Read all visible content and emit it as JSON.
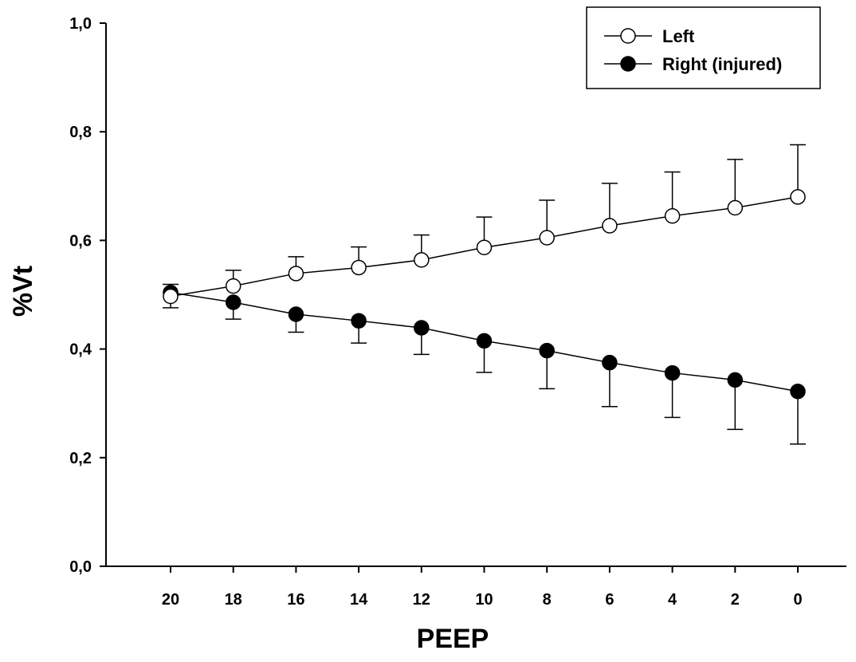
{
  "chart_data": {
    "type": "line",
    "title": "",
    "xlabel": "PEEP",
    "ylabel": "%Vt",
    "x": [
      20,
      18,
      16,
      14,
      12,
      10,
      8,
      6,
      4,
      2,
      0
    ],
    "x_tick_labels": [
      "20",
      "18",
      "16",
      "14",
      "12",
      "10",
      "8",
      "6",
      "4",
      "2",
      "0"
    ],
    "x_reversed": true,
    "ylim": [
      0,
      1
    ],
    "y_ticks": [
      0,
      0.2,
      0.4,
      0.6,
      0.8,
      1.0
    ],
    "y_tick_labels": [
      "0,0",
      "0,2",
      "0,4",
      "0,6",
      "0,8",
      "1,0"
    ],
    "grid": false,
    "legend_position": "top-right",
    "series": [
      {
        "name": "Left",
        "marker": "open-circle",
        "error_direction": "up",
        "values": [
          0.497,
          0.516,
          0.539,
          0.55,
          0.564,
          0.587,
          0.605,
          0.627,
          0.645,
          0.66,
          0.68
        ],
        "errors": [
          0.022,
          0.029,
          0.031,
          0.038,
          0.046,
          0.056,
          0.069,
          0.078,
          0.081,
          0.089,
          0.096
        ]
      },
      {
        "name": "Right (injured)",
        "marker": "filled-circle",
        "error_direction": "down",
        "values": [
          0.504,
          0.486,
          0.464,
          0.452,
          0.439,
          0.415,
          0.397,
          0.375,
          0.356,
          0.343,
          0.322
        ],
        "errors": [
          0.028,
          0.031,
          0.033,
          0.041,
          0.049,
          0.058,
          0.07,
          0.081,
          0.082,
          0.091,
          0.097
        ]
      }
    ]
  }
}
